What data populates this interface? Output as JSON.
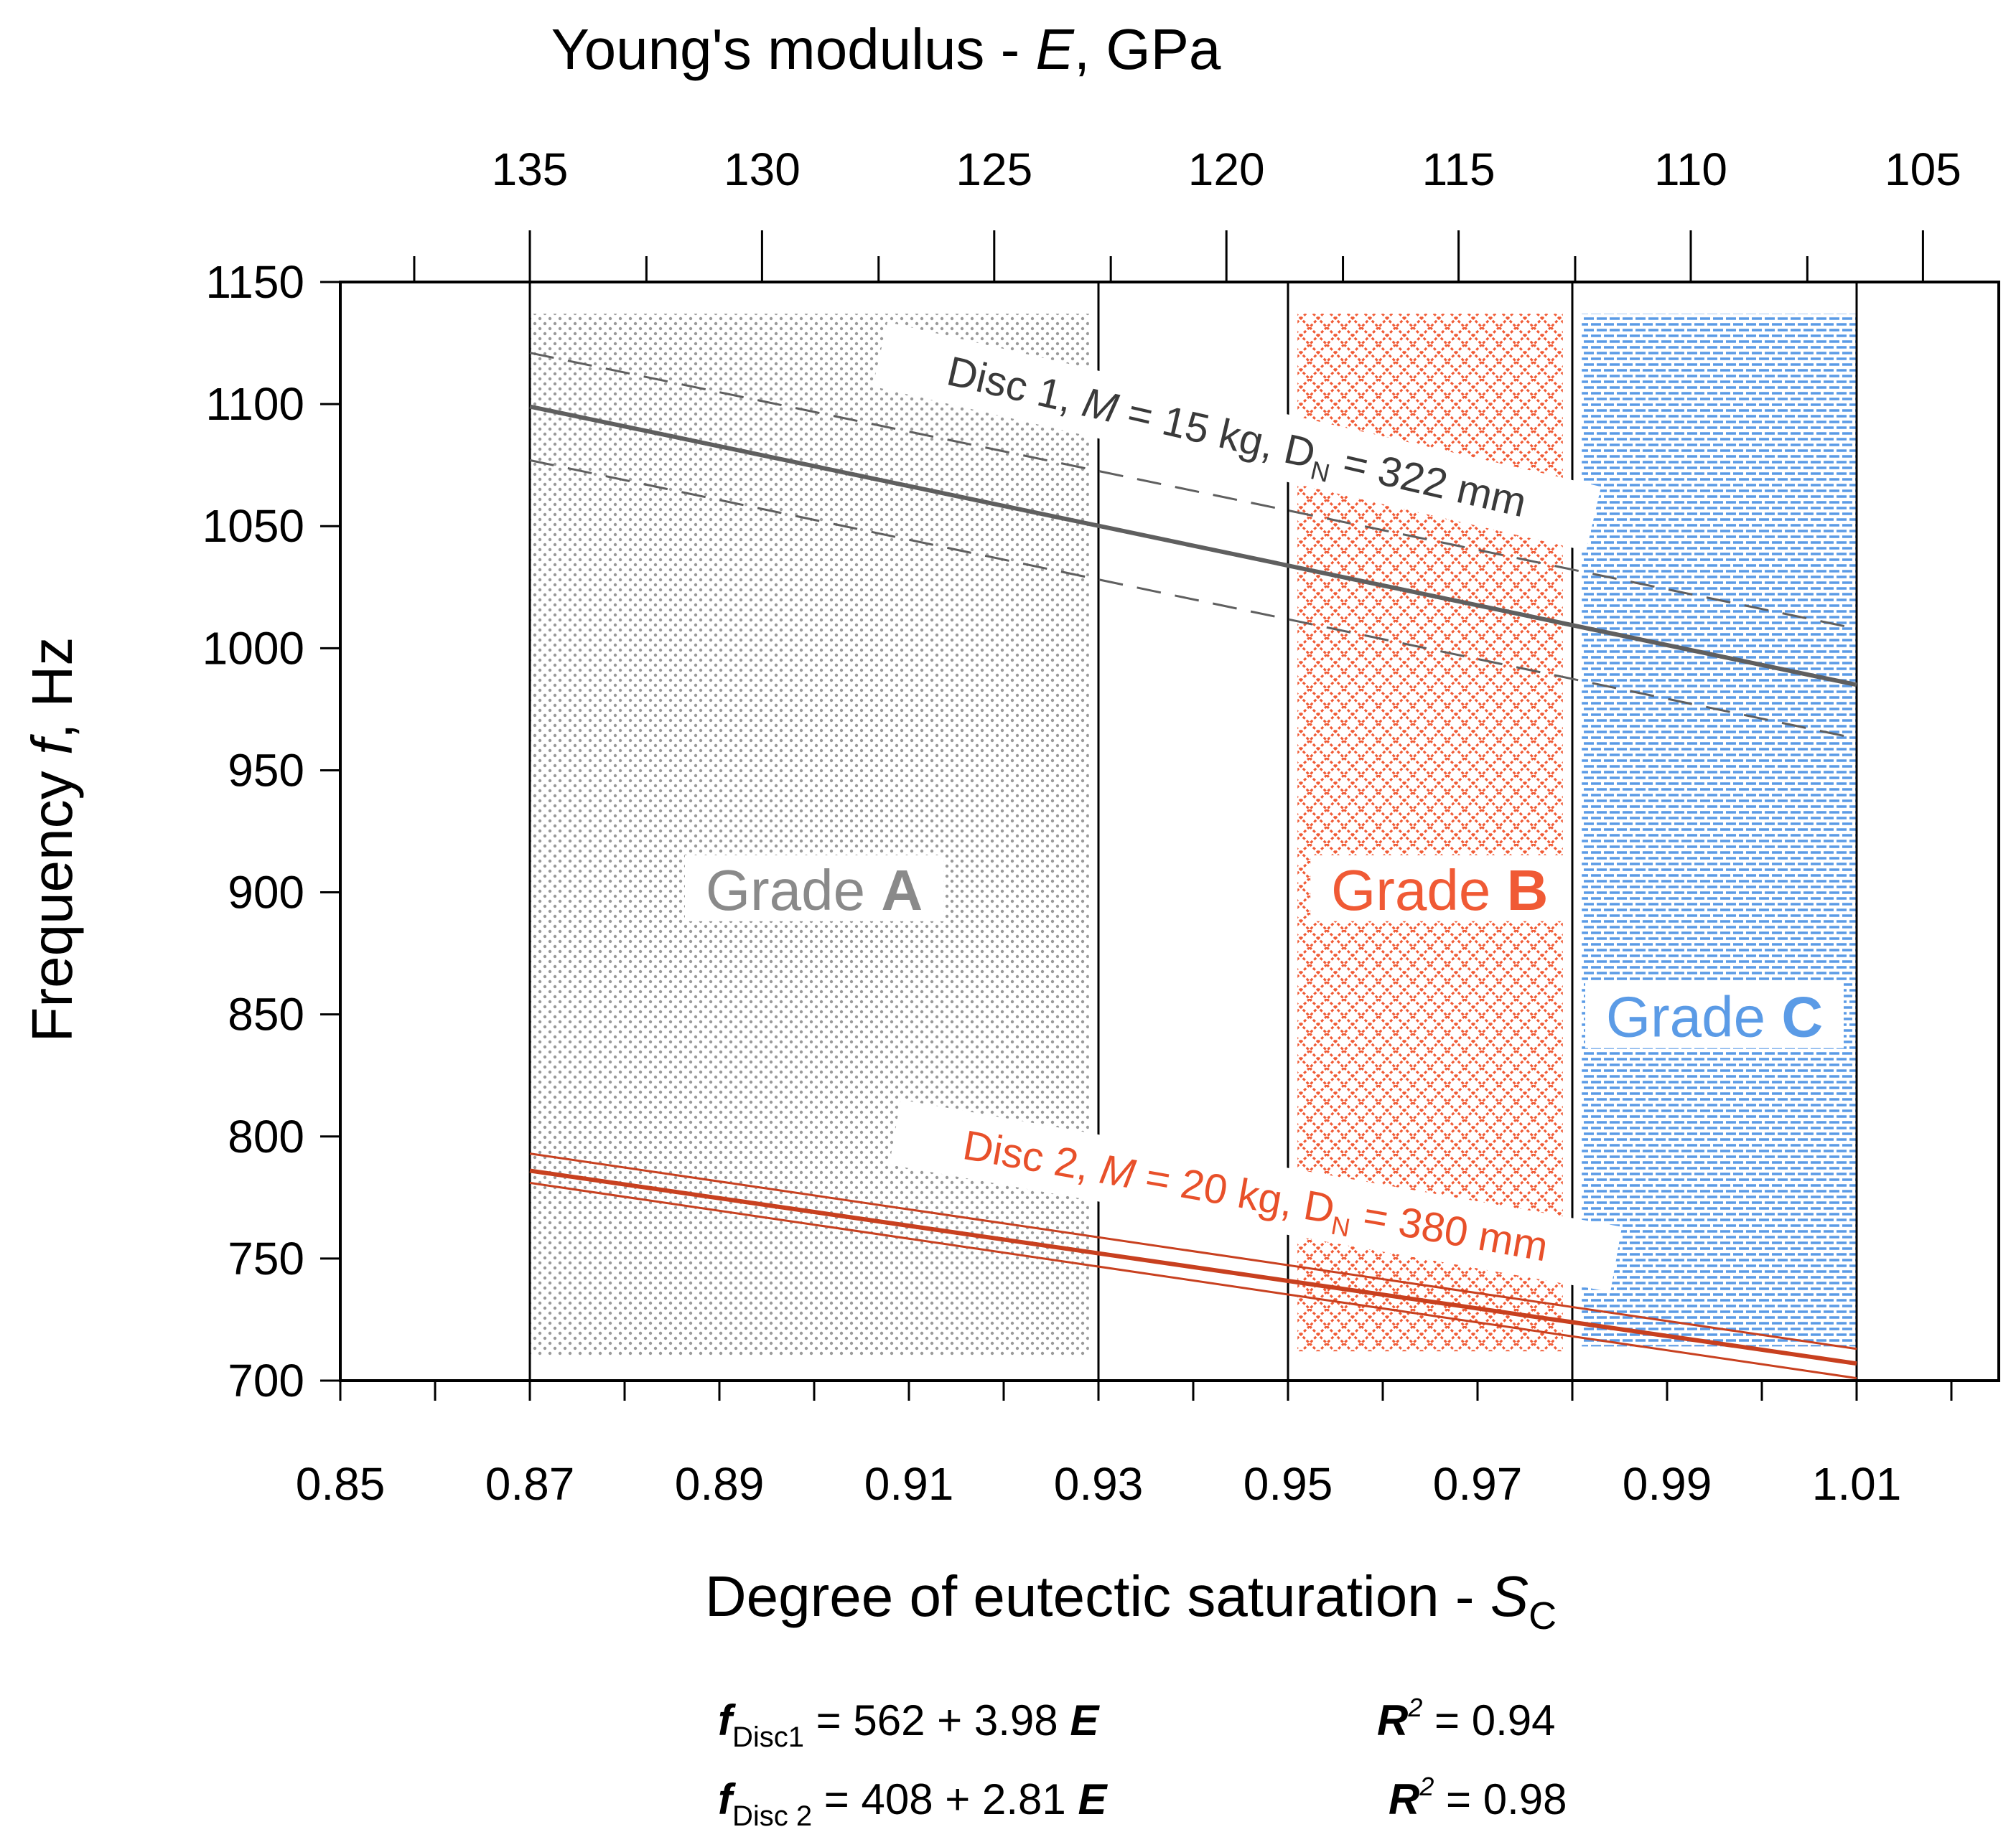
{
  "chart_data": {
    "type": "line",
    "xlabel": {
      "text": "Degree of eutectic saturation - ",
      "var": "S",
      "sub": "C"
    },
    "top_axis_label": {
      "text": "Young's modulus - ",
      "var": "E",
      "unit": ", GPa"
    },
    "ylabel": {
      "text": "Frequency ",
      "var": "f",
      "unit": ", Hz"
    },
    "xlim": [
      0.85,
      1.025
    ],
    "ylim": [
      700,
      1150
    ],
    "grid": false,
    "x_ticks": [
      {
        "v": 0.85,
        "label": "0.85"
      },
      {
        "v": 0.87,
        "label": "0.87"
      },
      {
        "v": 0.89,
        "label": "0.89"
      },
      {
        "v": 0.91,
        "label": "0.91"
      },
      {
        "v": 0.93,
        "label": "0.93"
      },
      {
        "v": 0.95,
        "label": "0.95"
      },
      {
        "v": 0.97,
        "label": "0.97"
      },
      {
        "v": 0.99,
        "label": "0.99"
      },
      {
        "v": 1.01,
        "label": "1.01"
      }
    ],
    "x_minor": [
      0.86,
      0.88,
      0.9,
      0.92,
      0.94,
      0.96,
      0.98,
      1.0,
      1.02
    ],
    "y_ticks": [
      {
        "v": 700,
        "label": "700"
      },
      {
        "v": 750,
        "label": "750"
      },
      {
        "v": 800,
        "label": "800"
      },
      {
        "v": 850,
        "label": "850"
      },
      {
        "v": 900,
        "label": "900"
      },
      {
        "v": 950,
        "label": "950"
      },
      {
        "v": 1000,
        "label": "1000"
      },
      {
        "v": 1050,
        "label": "1050"
      },
      {
        "v": 1100,
        "label": "1100"
      },
      {
        "v": 1150,
        "label": "1150"
      }
    ],
    "top_ticks": [
      {
        "v": 0.87,
        "label": "135"
      },
      {
        "v": 0.8945,
        "label": "130"
      },
      {
        "v": 0.919,
        "label": "125"
      },
      {
        "v": 0.9435,
        "label": "120"
      },
      {
        "v": 0.968,
        "label": "115"
      },
      {
        "v": 0.9925,
        "label": "110"
      },
      {
        "v": 1.017,
        "label": "105"
      }
    ],
    "top_minor": [
      0.8578,
      0.8823,
      0.9068,
      0.9313,
      0.9558,
      0.9803,
      1.0048
    ],
    "vlines": [
      0.87,
      0.93,
      0.95,
      0.98,
      1.01
    ],
    "regions": [
      {
        "name": "Grade A",
        "x0": 0.87,
        "x1": 0.929,
        "y0": 710,
        "y1": 1137,
        "pattern": "dots",
        "color": "#8a8a8a",
        "label_prefix": "Grade ",
        "label_letter": "A",
        "label_x": 0.9,
        "label_y": 897
      },
      {
        "name": "Grade B",
        "x0": 0.951,
        "x1": 0.979,
        "y0": 712,
        "y1": 1137,
        "pattern": "crosshatch",
        "color": "#f05a35",
        "label_prefix": "Grade ",
        "label_letter": "B",
        "label_x": 0.966,
        "label_y": 897
      },
      {
        "name": "Grade C",
        "x0": 0.981,
        "x1": 1.01,
        "y0": 714,
        "y1": 1137,
        "pattern": "dashes",
        "color": "#5b9be6",
        "label_prefix": "Grade ",
        "label_letter": "C",
        "label_x": 0.995,
        "label_y": 845
      }
    ],
    "series": [
      {
        "name": "Disc 1",
        "color": "#5f5f5f",
        "x": [
          0.87,
          1.01
        ],
        "y": [
          1099,
          985
        ],
        "style": "solid",
        "width": 6
      },
      {
        "name": "",
        "color": "#5f5f5f",
        "x": [
          0.87,
          1.01
        ],
        "y": [
          1121,
          1008
        ],
        "style": "dashed",
        "width": 3
      },
      {
        "name": "",
        "color": "#5f5f5f",
        "x": [
          0.87,
          1.01
        ],
        "y": [
          1077,
          963
        ],
        "style": "dashed",
        "width": 3
      },
      {
        "name": "Disc 2",
        "color": "#c8401f",
        "x": [
          0.87,
          1.01
        ],
        "y": [
          786,
          707
        ],
        "style": "solid",
        "width": 6
      },
      {
        "name": "",
        "color": "#c8401f",
        "x": [
          0.87,
          1.01
        ],
        "y": [
          793,
          713
        ],
        "style": "solid",
        "width": 3
      },
      {
        "name": "",
        "color": "#c8401f",
        "x": [
          0.87,
          1.01
        ],
        "y": [
          781,
          701
        ],
        "style": "solid",
        "width": 3
      }
    ],
    "annotations": [
      {
        "name": "disc1-label",
        "prefix": "Disc 1, ",
        "m": "M",
        "mval": " = 15 kg, ",
        "d": "D",
        "dsub": "N",
        "dval": " = 322 mm",
        "x": 0.9445,
        "y": 1085,
        "angle": 13,
        "color": "#3a3a3a"
      },
      {
        "name": "disc2-label",
        "prefix": "Disc 2, ",
        "m": "M",
        "mval": " = 20 kg, ",
        "d": "D",
        "dsub": "N",
        "dval": " = 380 mm",
        "x": 0.9465,
        "y": 774,
        "angle": 10,
        "color": "#e8502a"
      }
    ],
    "equations": [
      {
        "f": "f",
        "sub": "Disc1",
        "body": " = 562 + 3.98 ",
        "e": "E",
        "r": "R",
        "sup": "2",
        "rval": " = 0.94"
      },
      {
        "f": "f",
        "sub": "Disc 2",
        "body": " = 408 + 2.81 ",
        "e": "E",
        "r": "R",
        "sup": "2",
        "rval": " = 0.98"
      }
    ]
  }
}
